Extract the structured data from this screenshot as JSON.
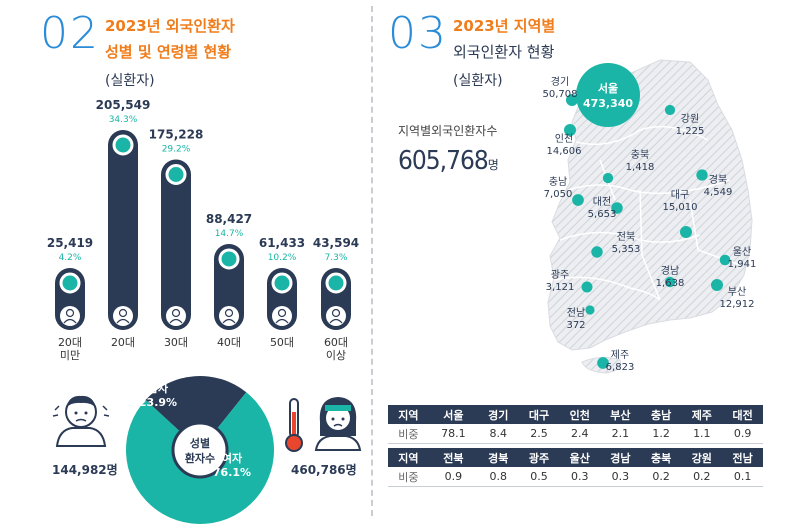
{
  "section02": {
    "number": "02",
    "title_line1": "2023년 외국인환자",
    "title_line2": "성별 및 연령별 현황",
    "subtitle": "(실환자)"
  },
  "section03": {
    "number": "03",
    "title_line1": "2023년 지역별",
    "title_line2": "외국인환자 현황",
    "subtitle": "(실환자)",
    "total_label": "지역별외국인환자수",
    "total_value": "605,768",
    "total_unit": "명"
  },
  "chart_data": [
    {
      "type": "bar",
      "title": "2023년 외국인환자 연령별 현황",
      "categories": [
        "20대 미만",
        "20대",
        "30대",
        "40대",
        "50대",
        "60대 이상"
      ],
      "category_lines": [
        [
          "20대",
          "미만"
        ],
        [
          "20대"
        ],
        [
          "30대"
        ],
        [
          "40대"
        ],
        [
          "50대"
        ],
        [
          "60대",
          "이상"
        ]
      ],
      "values": [
        25419,
        205549,
        175228,
        88427,
        61433,
        43594
      ],
      "value_labels": [
        "25,419",
        "205,549",
        "175,228",
        "88,427",
        "61,433",
        "43,594"
      ],
      "percent_labels": [
        "4.2%",
        "34.3%",
        "29.2%",
        "14.7%",
        "10.2%",
        "7.3%"
      ],
      "ylim": [
        0,
        205549
      ]
    },
    {
      "type": "pie",
      "title": "성별 환자수",
      "center_line1": "성별",
      "center_line2": "환자수",
      "slices": [
        {
          "name": "남자",
          "percent": 23.9,
          "percent_label": "23.9%",
          "count_label": "144,982명",
          "color": "#2b3a55"
        },
        {
          "name": "여자",
          "percent": 76.1,
          "percent_label": "76.1%",
          "count_label": "460,786명",
          "color": "#1ab5a6"
        }
      ]
    },
    {
      "type": "scatter",
      "title": "2023년 지역별 외국인환자 현황",
      "regions": [
        {
          "name": "서울",
          "value": 473340,
          "label": "473,340",
          "featured": true
        },
        {
          "name": "경기",
          "value": 50708,
          "label": "50,708"
        },
        {
          "name": "강원",
          "value": 1225,
          "label": "1,225"
        },
        {
          "name": "인천",
          "value": 14606,
          "label": "14,606"
        },
        {
          "name": "충북",
          "value": 1418,
          "label": "1,418"
        },
        {
          "name": "경북",
          "value": 4549,
          "label": "4,549"
        },
        {
          "name": "충남",
          "value": 7050,
          "label": "7,050"
        },
        {
          "name": "대전",
          "value": 5653,
          "label": "5,653"
        },
        {
          "name": "대구",
          "value": 15010,
          "label": "15,010"
        },
        {
          "name": "전북",
          "value": 5353,
          "label": "5,353"
        },
        {
          "name": "울산",
          "value": 1941,
          "label": "1,941"
        },
        {
          "name": "광주",
          "value": 3121,
          "label": "3,121"
        },
        {
          "name": "경남",
          "value": 1638,
          "label": "1,638"
        },
        {
          "name": "부산",
          "value": 12912,
          "label": "12,912"
        },
        {
          "name": "전남",
          "value": 372,
          "label": "372"
        },
        {
          "name": "제주",
          "value": 6823,
          "label": "6,823"
        }
      ]
    },
    {
      "type": "table",
      "title": "지역별 비중",
      "row_header_region": "지역",
      "row_header_share": "비중",
      "rows": [
        {
          "regions": [
            "서울",
            "경기",
            "대구",
            "인천",
            "부산",
            "충남",
            "제주",
            "대전"
          ],
          "shares": [
            "78.1",
            "8.4",
            "2.5",
            "2.4",
            "2.1",
            "1.2",
            "1.1",
            "0.9"
          ]
        },
        {
          "regions": [
            "전북",
            "경북",
            "광주",
            "울산",
            "경남",
            "충북",
            "강원",
            "전남"
          ],
          "shares": [
            "0.9",
            "0.8",
            "0.5",
            "0.3",
            "0.3",
            "0.2",
            "0.2",
            "0.1"
          ]
        }
      ]
    }
  ],
  "colors": {
    "navy": "#2b3a55",
    "teal": "#1ab5a6",
    "orange": "#f07d1b",
    "blue": "#2a8bd6",
    "map_fill": "#e6e8ec"
  }
}
